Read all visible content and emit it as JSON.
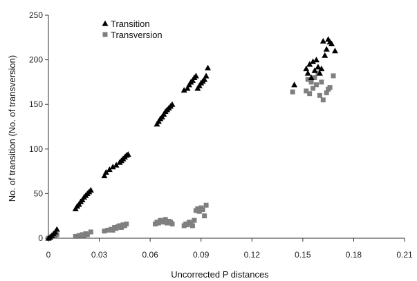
{
  "chart_data": {
    "type": "scatter",
    "xlabel": "Uncorrected P distances",
    "ylabel": "No. of transition (No. of transversion)",
    "xlim": [
      0,
      0.21
    ],
    "ylim": [
      0,
      250
    ],
    "xticks": [
      "0",
      "0.03",
      "0.06",
      "0.09",
      "0.12",
      "0.15",
      "0.18",
      "0.21"
    ],
    "yticks": [
      "0",
      "50",
      "100",
      "150",
      "200",
      "250"
    ],
    "grid": false,
    "legend": "top-left",
    "series": [
      {
        "name": "Transition",
        "marker": "triangle",
        "color": "#000000",
        "points": [
          [
            0.0,
            0
          ],
          [
            0.001,
            1
          ],
          [
            0.002,
            3
          ],
          [
            0.003,
            5
          ],
          [
            0.004,
            7
          ],
          [
            0.005,
            10
          ],
          [
            0.016,
            33
          ],
          [
            0.017,
            36
          ],
          [
            0.018,
            38
          ],
          [
            0.019,
            41
          ],
          [
            0.02,
            43
          ],
          [
            0.021,
            46
          ],
          [
            0.022,
            48
          ],
          [
            0.023,
            50
          ],
          [
            0.024,
            52
          ],
          [
            0.025,
            54
          ],
          [
            0.033,
            70
          ],
          [
            0.034,
            74
          ],
          [
            0.036,
            77
          ],
          [
            0.038,
            80
          ],
          [
            0.04,
            82
          ],
          [
            0.042,
            85
          ],
          [
            0.043,
            87
          ],
          [
            0.044,
            89
          ],
          [
            0.045,
            91
          ],
          [
            0.046,
            93
          ],
          [
            0.047,
            94
          ],
          [
            0.064,
            128
          ],
          [
            0.065,
            131
          ],
          [
            0.066,
            134
          ],
          [
            0.067,
            136
          ],
          [
            0.068,
            139
          ],
          [
            0.069,
            142
          ],
          [
            0.07,
            144
          ],
          [
            0.071,
            146
          ],
          [
            0.072,
            148
          ],
          [
            0.073,
            150
          ],
          [
            0.08,
            166
          ],
          [
            0.082,
            168
          ],
          [
            0.083,
            172
          ],
          [
            0.084,
            175
          ],
          [
            0.085,
            177
          ],
          [
            0.086,
            180
          ],
          [
            0.087,
            182
          ],
          [
            0.088,
            168
          ],
          [
            0.089,
            171
          ],
          [
            0.09,
            174
          ],
          [
            0.091,
            176
          ],
          [
            0.092,
            178
          ],
          [
            0.093,
            182
          ],
          [
            0.094,
            191
          ],
          [
            0.145,
            172
          ],
          [
            0.152,
            190
          ],
          [
            0.153,
            185
          ],
          [
            0.154,
            195
          ],
          [
            0.155,
            180
          ],
          [
            0.156,
            198
          ],
          [
            0.157,
            188
          ],
          [
            0.158,
            200
          ],
          [
            0.159,
            192
          ],
          [
            0.16,
            185
          ],
          [
            0.161,
            190
          ],
          [
            0.162,
            221
          ],
          [
            0.163,
            205
          ],
          [
            0.164,
            212
          ],
          [
            0.165,
            223
          ],
          [
            0.166,
            220
          ],
          [
            0.167,
            218
          ],
          [
            0.169,
            210
          ]
        ]
      },
      {
        "name": "Transversion",
        "marker": "square",
        "color": "#7f7f7f",
        "points": [
          [
            0.0,
            0
          ],
          [
            0.001,
            1
          ],
          [
            0.002,
            2
          ],
          [
            0.003,
            3
          ],
          [
            0.004,
            3
          ],
          [
            0.005,
            4
          ],
          [
            0.016,
            2
          ],
          [
            0.018,
            3
          ],
          [
            0.02,
            4
          ],
          [
            0.021,
            3
          ],
          [
            0.022,
            5
          ],
          [
            0.023,
            4
          ],
          [
            0.025,
            7
          ],
          [
            0.033,
            8
          ],
          [
            0.035,
            9
          ],
          [
            0.037,
            10
          ],
          [
            0.038,
            9
          ],
          [
            0.039,
            12
          ],
          [
            0.04,
            11
          ],
          [
            0.041,
            13
          ],
          [
            0.042,
            14
          ],
          [
            0.043,
            12
          ],
          [
            0.044,
            15
          ],
          [
            0.045,
            14
          ],
          [
            0.046,
            16
          ],
          [
            0.063,
            16
          ],
          [
            0.064,
            18
          ],
          [
            0.065,
            17
          ],
          [
            0.066,
            20
          ],
          [
            0.067,
            19
          ],
          [
            0.068,
            18
          ],
          [
            0.069,
            21
          ],
          [
            0.07,
            17
          ],
          [
            0.071,
            19
          ],
          [
            0.072,
            18
          ],
          [
            0.073,
            16
          ],
          [
            0.08,
            14
          ],
          [
            0.081,
            16
          ],
          [
            0.082,
            15
          ],
          [
            0.083,
            18
          ],
          [
            0.084,
            17
          ],
          [
            0.085,
            14
          ],
          [
            0.086,
            20
          ],
          [
            0.087,
            31
          ],
          [
            0.088,
            33
          ],
          [
            0.089,
            30
          ],
          [
            0.09,
            34
          ],
          [
            0.091,
            32
          ],
          [
            0.092,
            25
          ],
          [
            0.093,
            37
          ],
          [
            0.144,
            164
          ],
          [
            0.152,
            165
          ],
          [
            0.153,
            178
          ],
          [
            0.154,
            162
          ],
          [
            0.155,
            175
          ],
          [
            0.156,
            168
          ],
          [
            0.157,
            180
          ],
          [
            0.158,
            172
          ],
          [
            0.159,
            185
          ],
          [
            0.16,
            160
          ],
          [
            0.161,
            175
          ],
          [
            0.162,
            155
          ],
          [
            0.164,
            163
          ],
          [
            0.165,
            167
          ],
          [
            0.166,
            169
          ],
          [
            0.168,
            182
          ]
        ]
      }
    ]
  }
}
